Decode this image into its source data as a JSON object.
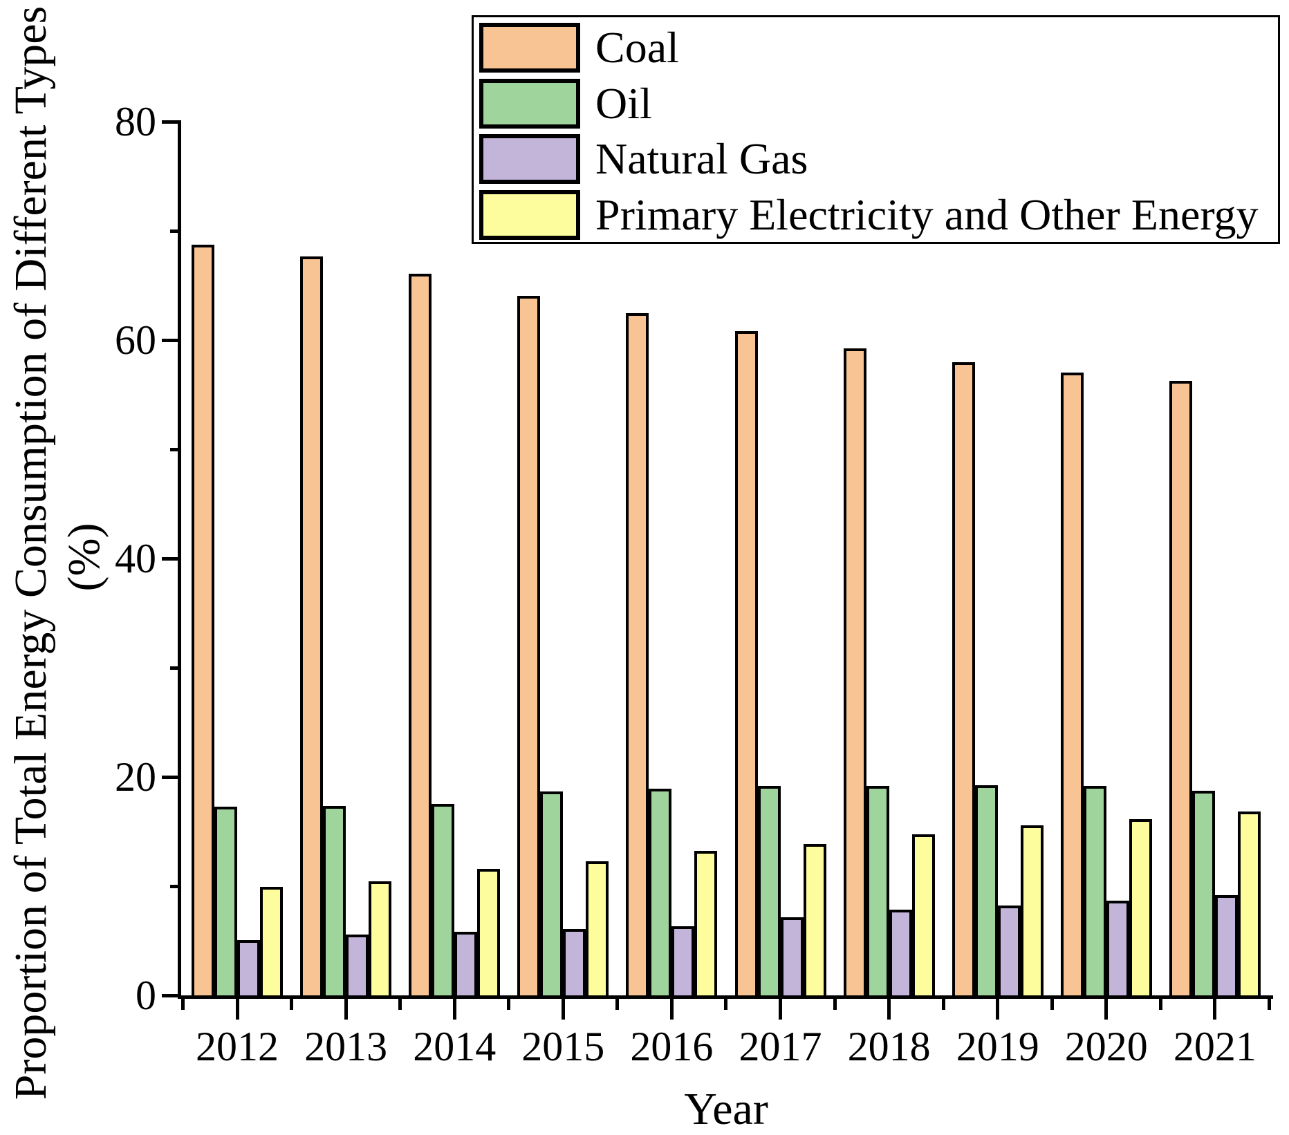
{
  "chart_data": {
    "type": "bar",
    "title": "",
    "xlabel": "Year",
    "ylabel_lines": [
      "Proportion of Total Energy Consumption of Different Types",
      "(%)"
    ],
    "categories": [
      "2012",
      "2013",
      "2014",
      "2015",
      "2016",
      "2017",
      "2018",
      "2019",
      "2020",
      "2021"
    ],
    "series": [
      {
        "name": "Coal",
        "color": "#F9C493",
        "values": [
          68.5,
          67.4,
          65.8,
          63.8,
          62.2,
          60.6,
          59.0,
          57.7,
          56.8,
          56.0
        ]
      },
      {
        "name": "Oil",
        "color": "#9FD59C",
        "values": [
          17.0,
          17.1,
          17.3,
          18.4,
          18.7,
          18.9,
          18.9,
          19.0,
          18.9,
          18.5
        ]
      },
      {
        "name": "Natural Gas",
        "color": "#C3B4D9",
        "values": [
          4.8,
          5.3,
          5.6,
          5.8,
          6.1,
          6.9,
          7.6,
          8.0,
          8.4,
          8.9
        ]
      },
      {
        "name": "Primary Electricity and Other Energy",
        "color": "#FDFD9E",
        "values": [
          9.7,
          10.2,
          11.3,
          12.0,
          13.0,
          13.6,
          14.5,
          15.3,
          15.9,
          16.6
        ]
      }
    ],
    "ylim": [
      0,
      80
    ],
    "y_ticks_major": [
      0,
      20,
      40,
      60,
      80
    ],
    "y_ticks_minor": [
      10,
      30,
      50,
      70
    ],
    "axis_color": "#000000",
    "bar_border_color": "#000000",
    "legend_position": "top-right",
    "grid": false,
    "unit": "%"
  }
}
